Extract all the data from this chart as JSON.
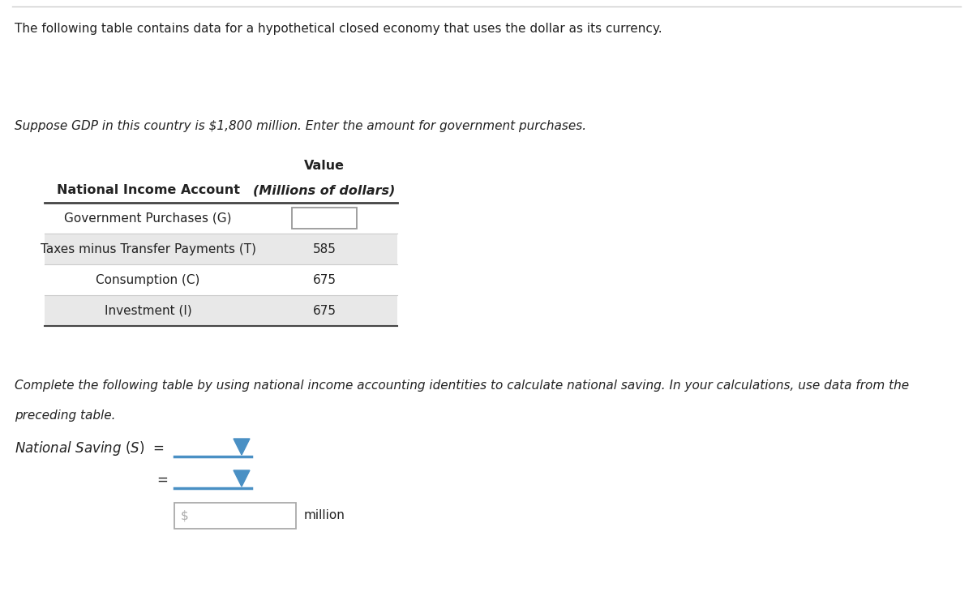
{
  "title_text": "The following table contains data for a hypothetical closed economy that uses the dollar as its currency.",
  "subtitle_text": "Suppose GDP in this country is $1,800 million. Enter the amount for government purchases.",
  "table_header_col1": "National Income Account",
  "table_rows": [
    [
      "Government Purchases (G)",
      ""
    ],
    [
      "Taxes minus Transfer Payments (T)",
      "585"
    ],
    [
      "Consumption (C)",
      "675"
    ],
    [
      "Investment (I)",
      "675"
    ]
  ],
  "complete_text1": "Complete the following table by using national income accounting identities to calculate national saving. In your calculations, use data from the",
  "complete_text2": "preceding table.",
  "bg_color": "#ffffff",
  "table_alt_row_color": "#e8e8e8",
  "header_line_color": "#444444",
  "blue_line_color": "#4a90c4",
  "dropdown_arrow_color": "#4a90c4",
  "text_color": "#222222",
  "input_box_border": "#aaaaaa"
}
